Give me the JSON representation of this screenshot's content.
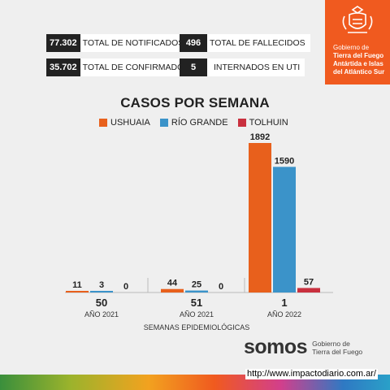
{
  "stats": [
    {
      "value": "77.302",
      "label": "TOTAL DE NOTIFICADOS"
    },
    {
      "value": "496",
      "label": "TOTAL DE FALLECIDOS"
    },
    {
      "value": "35.702",
      "label": "TOTAL DE CONFIRMADOS"
    },
    {
      "value": "5",
      "label": "INTERNADOS EN UTI"
    }
  ],
  "gov": {
    "line1": "Gobierno de",
    "line2": "Tierra del Fuego",
    "line3": "Antártida e Islas",
    "line4": "del Atlántico Sur"
  },
  "footer": {
    "brand": "somos",
    "sub1": "Gobierno de",
    "sub2": "Tierra del Fuego",
    "url": "http://www.impactodiario.com.ar/"
  },
  "chart_data": {
    "type": "bar",
    "title": "CASOS POR SEMANA",
    "xlabel": "SEMANAS EPIDEMIOLÓGICAS",
    "categories": [
      "50",
      "51",
      "1"
    ],
    "category_sublabels": [
      "AÑO 2021",
      "AÑO 2021",
      "AÑO 2022"
    ],
    "series": [
      {
        "name": "USHUAIA",
        "color": "#e8601c",
        "values": [
          11,
          44,
          1892
        ]
      },
      {
        "name": "RÍO GRANDE",
        "color": "#3b93c9",
        "values": [
          3,
          25,
          1590
        ]
      },
      {
        "name": "TOLHUIN",
        "color": "#c9303e",
        "values": [
          0,
          0,
          57
        ]
      }
    ],
    "ylim": [
      0,
      1892
    ],
    "grid": false,
    "legend": "top"
  }
}
